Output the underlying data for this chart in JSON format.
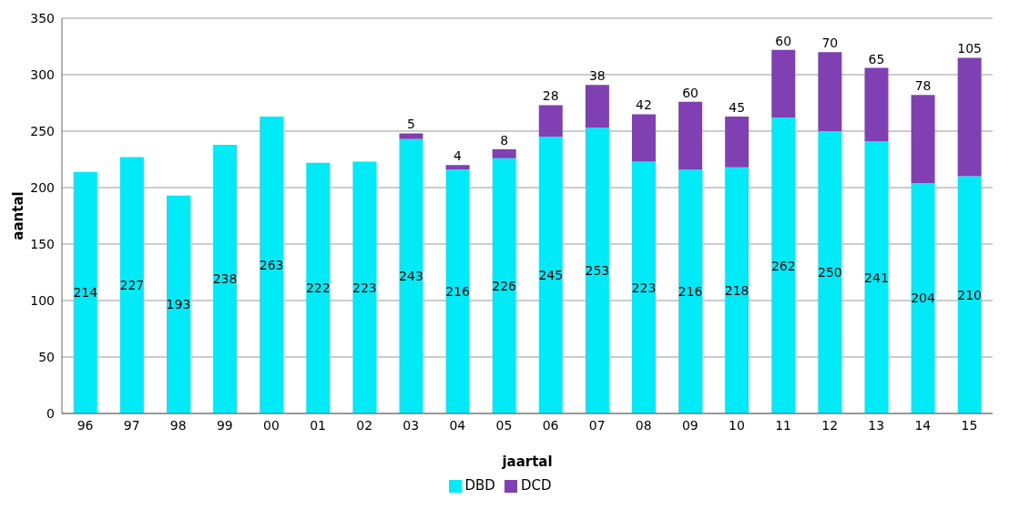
{
  "chart_data": {
    "type": "bar",
    "stacked": true,
    "xlabel": "jaartal",
    "ylabel": "aantal",
    "categories": [
      "96",
      "97",
      "98",
      "99",
      "00",
      "01",
      "02",
      "03",
      "04",
      "05",
      "06",
      "07",
      "08",
      "09",
      "10",
      "11",
      "12",
      "13",
      "14",
      "15"
    ],
    "series": [
      {
        "name": "DBD",
        "color": "#00eaf8",
        "values": [
          214,
          227,
          193,
          238,
          263,
          222,
          223,
          243,
          216,
          226,
          245,
          253,
          223,
          216,
          218,
          262,
          250,
          241,
          204,
          210
        ]
      },
      {
        "name": "DCD",
        "color": "#8040b4",
        "values": [
          null,
          null,
          null,
          null,
          null,
          null,
          null,
          5,
          4,
          8,
          28,
          38,
          42,
          60,
          45,
          60,
          70,
          65,
          78,
          105
        ]
      }
    ],
    "ylim": [
      0,
      350
    ],
    "yticks": [
      0,
      50,
      100,
      150,
      200,
      250,
      300,
      350
    ],
    "grid": "y",
    "legend": "bottom",
    "data_labels": true
  }
}
